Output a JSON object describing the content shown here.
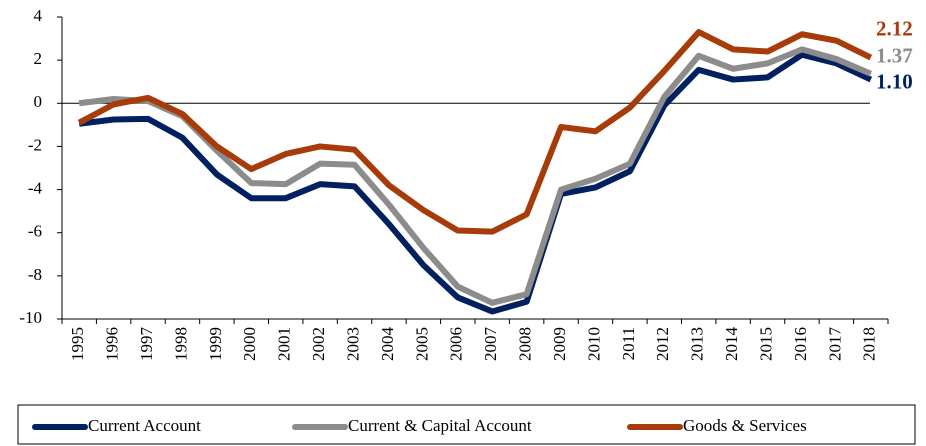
{
  "chart_data": {
    "type": "line",
    "categories": [
      "1995",
      "1996",
      "1997",
      "1998",
      "1999",
      "2000",
      "2001",
      "2002",
      "2003",
      "2004",
      "2005",
      "2006",
      "2007",
      "2008",
      "2009",
      "2010",
      "2011",
      "2012",
      "2013",
      "2014",
      "2015",
      "2016",
      "2017",
      "2018"
    ],
    "series": [
      {
        "name": "Current Account",
        "color": "#002060",
        "values": [
          -0.95,
          -0.75,
          -0.72,
          -1.6,
          -3.3,
          -4.4,
          -4.4,
          -3.75,
          -3.85,
          -5.6,
          -7.5,
          -9.0,
          -9.65,
          -9.2,
          -4.2,
          -3.9,
          -3.15,
          -0.1,
          1.55,
          1.1,
          1.2,
          2.25,
          1.85,
          1.1
        ],
        "value_labels": [
          null,
          null,
          null,
          null,
          null,
          null,
          null,
          null,
          null,
          null,
          null,
          null,
          null,
          null,
          null,
          null,
          null,
          null,
          null,
          null,
          null,
          null,
          null,
          "1.10"
        ]
      },
      {
        "name": "Current & Capital Account",
        "color": "#8c8c8c",
        "values": [
          0.0,
          0.2,
          0.1,
          -0.6,
          -2.2,
          -3.7,
          -3.75,
          -2.8,
          -2.85,
          -4.7,
          -6.7,
          -8.5,
          -9.25,
          -8.85,
          -4.0,
          -3.5,
          -2.8,
          0.3,
          2.2,
          1.6,
          1.85,
          2.5,
          2.05,
          1.37
        ]
      },
      {
        "name": "Goods & Services",
        "color": "#a83b0a",
        "values": [
          -0.9,
          -0.05,
          0.25,
          -0.5,
          -2.0,
          -3.05,
          -2.35,
          -2.0,
          -2.15,
          -3.8,
          -4.95,
          -5.9,
          -5.95,
          -5.15,
          -1.1,
          -1.3,
          -0.2,
          1.5,
          3.3,
          2.5,
          2.4,
          3.2,
          2.9,
          2.12
        ]
      }
    ],
    "ylim": [
      -10,
      4
    ],
    "yticks": [
      -10,
      -8,
      -6,
      -4,
      -2,
      0,
      2,
      4
    ],
    "legend": "bottom"
  }
}
